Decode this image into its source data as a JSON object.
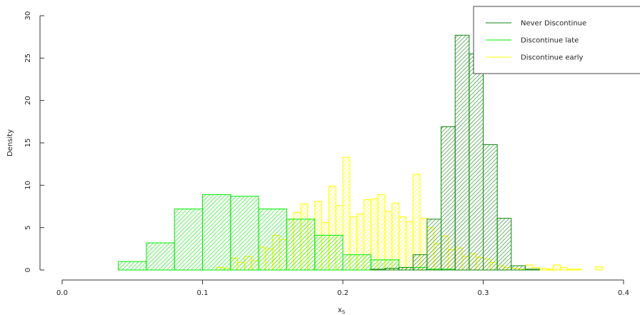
{
  "chart_data": {
    "type": "bar",
    "xlabel": "x",
    "xlabel_sub": "S",
    "ylabel": "Density",
    "xlim": [
      0.0,
      0.4
    ],
    "ylim": [
      0,
      30
    ],
    "xticks": [
      "0.0",
      "0.1",
      "0.2",
      "0.3",
      "0.4"
    ],
    "yticks": [
      "0",
      "5",
      "10",
      "15",
      "20",
      "25",
      "30"
    ],
    "legend_position": "top-right",
    "grid": false,
    "series": [
      {
        "name": "Discontinue early",
        "color": "#ffff00",
        "bin_width": 0.005,
        "bin_start": 0.11,
        "values": [
          0.3,
          0.2,
          1.4,
          0.9,
          1.6,
          1.1,
          2.7,
          2.5,
          4.1,
          3.6,
          6.0,
          6.8,
          7.8,
          6.0,
          8.1,
          5.6,
          9.9,
          7.6,
          13.3,
          6.3,
          6.6,
          8.3,
          8.4,
          8.9,
          6.9,
          7.9,
          6.3,
          5.7,
          11.3,
          6.1,
          5.0,
          3.1,
          4.0,
          2.4,
          2.6,
          1.6,
          1.9,
          1.5,
          1.3,
          0.9,
          0.5,
          0.3,
          0.2,
          0.1,
          0.6,
          0.3,
          0.2,
          0.1,
          0.6,
          0.3,
          0.1,
          0.1,
          0.0,
          0.0,
          0.4
        ]
      },
      {
        "name": "Discontinue late",
        "color": "#00ee00",
        "bin_width": 0.02,
        "bin_start": 0.04,
        "values": [
          1.0,
          3.2,
          7.2,
          8.9,
          8.7,
          7.2,
          6.0,
          4.1,
          1.8,
          1.2,
          0.3,
          0.1,
          0.0,
          0.0,
          0.0
        ]
      },
      {
        "name": "Never Discontinue",
        "color": "#118811",
        "bin_width": 0.01,
        "bin_start": 0.22,
        "values": [
          0.1,
          0.2,
          0.3,
          1.8,
          6.0,
          16.9,
          27.7,
          25.5,
          14.8,
          6.1,
          0.5,
          0.1
        ]
      }
    ],
    "legend_order": [
      "Never Discontinue",
      "Discontinue late",
      "Discontinue early"
    ]
  }
}
